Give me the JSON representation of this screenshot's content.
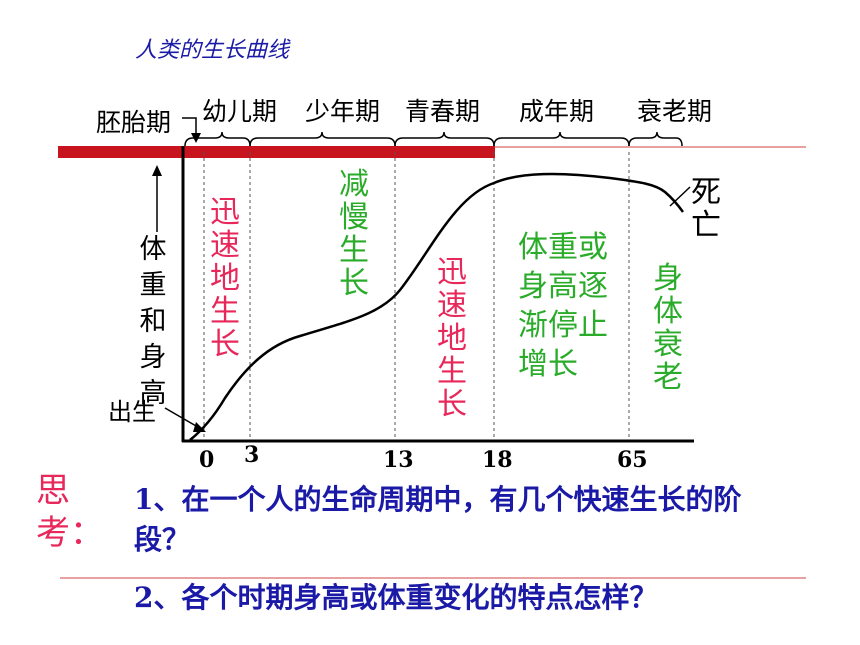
{
  "title": "人类的生长曲线",
  "stages": {
    "embryo": "胚胎期",
    "infant": "幼儿期",
    "juvenile": "少年期",
    "adolescence": "青春期",
    "adult": "成年期",
    "old_age": "衰老期"
  },
  "axis": {
    "y_label": "体重和身高",
    "birth_label": "出生",
    "ticks": [
      "0",
      "3",
      "13",
      "18",
      "65"
    ]
  },
  "annotations": {
    "rapid_1": "迅速地生长",
    "slow": "减慢生长",
    "rapid_2": "迅速地生长",
    "gradual_stop": "体重或身高逐渐停止增长",
    "aging": "身体衰老",
    "death": "死亡"
  },
  "questions": {
    "label": "思考：",
    "q1": "1、在一个人的生命周期中，有几个快速生长的阶段？",
    "q2": "2、各个时期身高或体重变化的特点怎样？"
  },
  "colors": {
    "red_bar": "#c8141e",
    "accent_red": "#e8275a",
    "green": "#2aab2a",
    "blue": "#1a1aa6"
  }
}
